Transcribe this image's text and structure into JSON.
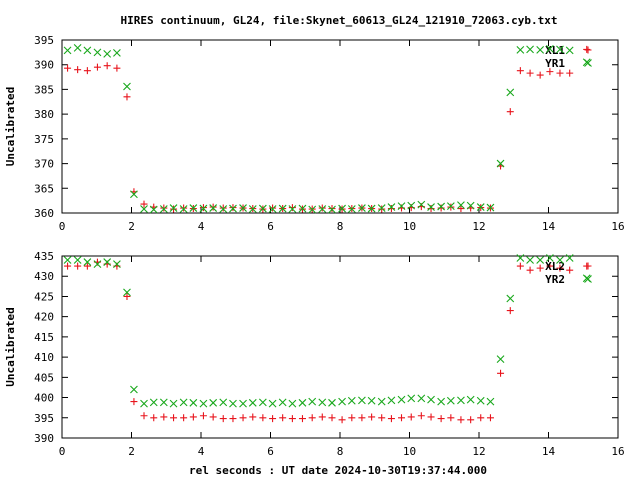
{
  "title": "HIRES continuum, GL24, file:Skynet_60613_GL24_121910_72063.cyb.txt",
  "xlabel": "rel seconds : UT date 2024-10-30T19:37:44.000",
  "colors": {
    "red": "#e8141c",
    "green": "#19a81c",
    "axis": "#000000"
  },
  "chart_data": [
    {
      "type": "scatter",
      "ylabel": "Uncalibrated",
      "xlim": [
        0,
        16
      ],
      "ylim": [
        360,
        395
      ],
      "xticks": [
        0,
        2,
        4,
        6,
        8,
        10,
        12,
        14,
        16
      ],
      "yticks": [
        360,
        365,
        370,
        375,
        380,
        385,
        390,
        395
      ],
      "legend_position": "top-right",
      "series": [
        {
          "name": "XL1",
          "color": "#e8141c",
          "marker": "plus",
          "x": [
            0.16,
            0.45,
            0.73,
            1.02,
            1.3,
            1.58,
            1.87,
            2.07,
            2.36,
            2.64,
            2.93,
            3.21,
            3.5,
            3.78,
            4.07,
            4.35,
            4.64,
            4.92,
            5.21,
            5.49,
            5.78,
            6.06,
            6.35,
            6.63,
            6.92,
            7.2,
            7.49,
            7.77,
            8.06,
            8.34,
            8.63,
            8.91,
            9.2,
            9.48,
            9.77,
            10.05,
            10.34,
            10.62,
            10.91,
            11.19,
            11.48,
            11.76,
            12.05,
            12.33,
            12.62,
            12.9,
            13.19,
            13.47,
            13.76,
            14.04,
            14.33,
            14.61,
            15.1
          ],
          "y": [
            389.3,
            389.0,
            388.8,
            389.5,
            389.8,
            389.3,
            383.5,
            364.3,
            361.8,
            361.2,
            361.0,
            360.8,
            361.0,
            360.9,
            361.1,
            361.2,
            361.0,
            361.1,
            361.0,
            360.9,
            360.8,
            361.0,
            360.9,
            361.1,
            360.8,
            360.8,
            361.0,
            360.9,
            360.8,
            360.9,
            361.0,
            360.9,
            360.8,
            360.9,
            361.0,
            361.1,
            361.3,
            360.9,
            361.0,
            361.2,
            360.9,
            361.0,
            361.1,
            361.0,
            369.5,
            380.5,
            388.8,
            388.3,
            387.9,
            388.6,
            388.3,
            388.3,
            393.1
          ]
        },
        {
          "name": "YR1",
          "color": "#19a81c",
          "marker": "x",
          "x": [
            0.16,
            0.45,
            0.73,
            1.02,
            1.3,
            1.58,
            1.87,
            2.07,
            2.36,
            2.64,
            2.93,
            3.21,
            3.5,
            3.78,
            4.07,
            4.35,
            4.64,
            4.92,
            5.21,
            5.49,
            5.78,
            6.06,
            6.35,
            6.63,
            6.92,
            7.2,
            7.49,
            7.77,
            8.06,
            8.34,
            8.63,
            8.91,
            9.2,
            9.48,
            9.77,
            10.05,
            10.34,
            10.62,
            10.91,
            11.19,
            11.48,
            11.76,
            12.05,
            12.33,
            12.62,
            12.9,
            13.19,
            13.47,
            13.76,
            14.04,
            14.33,
            14.61,
            15.1
          ],
          "y": [
            392.9,
            393.4,
            392.9,
            392.5,
            392.2,
            392.4,
            385.6,
            363.8,
            360.8,
            360.7,
            360.8,
            361.0,
            360.8,
            361.0,
            360.9,
            361.0,
            360.8,
            360.9,
            361.0,
            360.8,
            360.9,
            360.8,
            360.9,
            360.8,
            360.9,
            360.7,
            360.8,
            360.7,
            360.9,
            360.8,
            361.0,
            360.9,
            361.0,
            361.2,
            361.4,
            361.5,
            361.7,
            361.2,
            361.3,
            361.4,
            361.6,
            361.5,
            361.2,
            361.1,
            370.0,
            384.4,
            393.0,
            393.1,
            393.0,
            393.2,
            393.1,
            392.9,
            390.5
          ]
        }
      ]
    },
    {
      "type": "scatter",
      "ylabel": "Uncalibrated",
      "xlim": [
        0,
        16
      ],
      "ylim": [
        390,
        435
      ],
      "xticks": [
        0,
        2,
        4,
        6,
        8,
        10,
        12,
        14,
        16
      ],
      "yticks": [
        390,
        395,
        400,
        405,
        410,
        415,
        420,
        425,
        430,
        435
      ],
      "legend_position": "top-right",
      "series": [
        {
          "name": "XL2",
          "color": "#e8141c",
          "marker": "plus",
          "x": [
            0.16,
            0.45,
            0.73,
            1.02,
            1.3,
            1.58,
            1.87,
            2.07,
            2.36,
            2.64,
            2.93,
            3.21,
            3.5,
            3.78,
            4.07,
            4.35,
            4.64,
            4.92,
            5.21,
            5.49,
            5.78,
            6.06,
            6.35,
            6.63,
            6.92,
            7.2,
            7.49,
            7.77,
            8.06,
            8.34,
            8.63,
            8.91,
            9.2,
            9.48,
            9.77,
            10.05,
            10.34,
            10.62,
            10.91,
            11.19,
            11.48,
            11.76,
            12.05,
            12.33,
            12.62,
            12.9,
            13.19,
            13.47,
            13.76,
            14.04,
            14.33,
            14.61,
            15.1
          ],
          "y": [
            432.5,
            432.5,
            432.5,
            433.5,
            433.0,
            432.5,
            425.0,
            399.0,
            395.5,
            395.0,
            395.2,
            395.0,
            395.0,
            395.2,
            395.5,
            395.2,
            394.8,
            394.8,
            395.0,
            395.2,
            395.0,
            394.8,
            395.0,
            394.8,
            394.8,
            395.0,
            395.2,
            395.0,
            394.5,
            395.0,
            395.0,
            395.2,
            395.0,
            394.8,
            395.0,
            395.2,
            395.5,
            395.2,
            394.8,
            395.0,
            394.5,
            394.5,
            395.0,
            395.0,
            406.0,
            421.5,
            432.5,
            431.5,
            432.0,
            432.5,
            432.0,
            431.5,
            432.5
          ]
        },
        {
          "name": "YR2",
          "color": "#19a81c",
          "marker": "x",
          "x": [
            0.16,
            0.45,
            0.73,
            1.02,
            1.3,
            1.58,
            1.87,
            2.07,
            2.36,
            2.64,
            2.93,
            3.21,
            3.5,
            3.78,
            4.07,
            4.35,
            4.64,
            4.92,
            5.21,
            5.49,
            5.78,
            6.06,
            6.35,
            6.63,
            6.92,
            7.2,
            7.49,
            7.77,
            8.06,
            8.34,
            8.63,
            8.91,
            9.2,
            9.48,
            9.77,
            10.05,
            10.34,
            10.62,
            10.91,
            11.19,
            11.48,
            11.76,
            12.05,
            12.33,
            12.62,
            12.9,
            13.19,
            13.47,
            13.76,
            14.04,
            14.33,
            14.61,
            15.1
          ],
          "y": [
            434.0,
            434.0,
            433.5,
            433.0,
            433.5,
            433.0,
            426.0,
            402.0,
            398.5,
            398.8,
            398.8,
            398.5,
            398.8,
            398.7,
            398.5,
            398.7,
            398.8,
            398.5,
            398.5,
            398.7,
            398.8,
            398.5,
            398.8,
            398.5,
            398.7,
            399.0,
            398.8,
            398.7,
            399.0,
            399.2,
            399.3,
            399.2,
            399.0,
            399.3,
            399.5,
            399.8,
            399.8,
            399.5,
            399.0,
            399.2,
            399.3,
            399.5,
            399.2,
            399.0,
            409.5,
            424.5,
            434.5,
            434.0,
            434.0,
            434.5,
            434.0,
            434.5,
            429.5
          ]
        }
      ]
    }
  ]
}
